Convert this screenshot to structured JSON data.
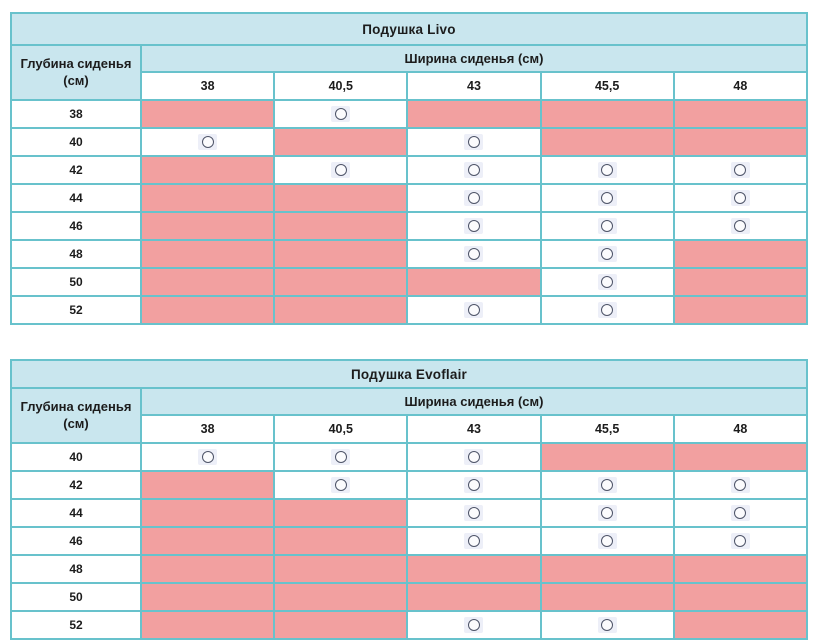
{
  "colors": {
    "header_bg": "#c9e6ee",
    "unavailable_bg": "#f2a0a0",
    "border": "#68c2cc",
    "circle_stroke": "#4e5468",
    "circle_chip_bg": "#edeff8",
    "circle_fill": "#fbfbfd"
  },
  "legend": {
    "circle_meaning": "available-combination",
    "pink_meaning": "unavailable-combination"
  },
  "tables": [
    {
      "title": "Подушка Livo",
      "depth_header": "Глубина сиденья (см)",
      "width_header": "Ширина сиденья (см)",
      "columns": [
        "38",
        "40,5",
        "43",
        "45,5",
        "48"
      ],
      "rows": [
        {
          "depth": "38",
          "cells": [
            "na",
            "ok",
            "na",
            "na",
            "na"
          ]
        },
        {
          "depth": "40",
          "cells": [
            "ok",
            "na",
            "ok",
            "na",
            "na"
          ]
        },
        {
          "depth": "42",
          "cells": [
            "na",
            "ok",
            "ok",
            "ok",
            "ok"
          ]
        },
        {
          "depth": "44",
          "cells": [
            "na",
            "na",
            "ok",
            "ok",
            "ok"
          ]
        },
        {
          "depth": "46",
          "cells": [
            "na",
            "na",
            "ok",
            "ok",
            "ok"
          ]
        },
        {
          "depth": "48",
          "cells": [
            "na",
            "na",
            "ok",
            "ok",
            "na"
          ]
        },
        {
          "depth": "50",
          "cells": [
            "na",
            "na",
            "na",
            "ok",
            "na"
          ]
        },
        {
          "depth": "52",
          "cells": [
            "na",
            "na",
            "ok",
            "ok",
            "na"
          ]
        }
      ]
    },
    {
      "title": "Подушка Evoflair",
      "depth_header": "Глубина сиденья (см)",
      "width_header": "Ширина сиденья (см)",
      "columns": [
        "38",
        "40,5",
        "43",
        "45,5",
        "48"
      ],
      "rows": [
        {
          "depth": "40",
          "cells": [
            "ok",
            "ok",
            "ok",
            "na",
            "na"
          ]
        },
        {
          "depth": "42",
          "cells": [
            "na",
            "ok",
            "ok",
            "ok",
            "ok"
          ]
        },
        {
          "depth": "44",
          "cells": [
            "na",
            "na",
            "ok",
            "ok",
            "ok"
          ]
        },
        {
          "depth": "46",
          "cells": [
            "na",
            "na",
            "ok",
            "ok",
            "ok"
          ]
        },
        {
          "depth": "48",
          "cells": [
            "na",
            "na",
            "na",
            "na",
            "na"
          ]
        },
        {
          "depth": "50",
          "cells": [
            "na",
            "na",
            "na",
            "na",
            "na"
          ]
        },
        {
          "depth": "52",
          "cells": [
            "na",
            "na",
            "ok",
            "ok",
            "na"
          ]
        }
      ]
    }
  ]
}
